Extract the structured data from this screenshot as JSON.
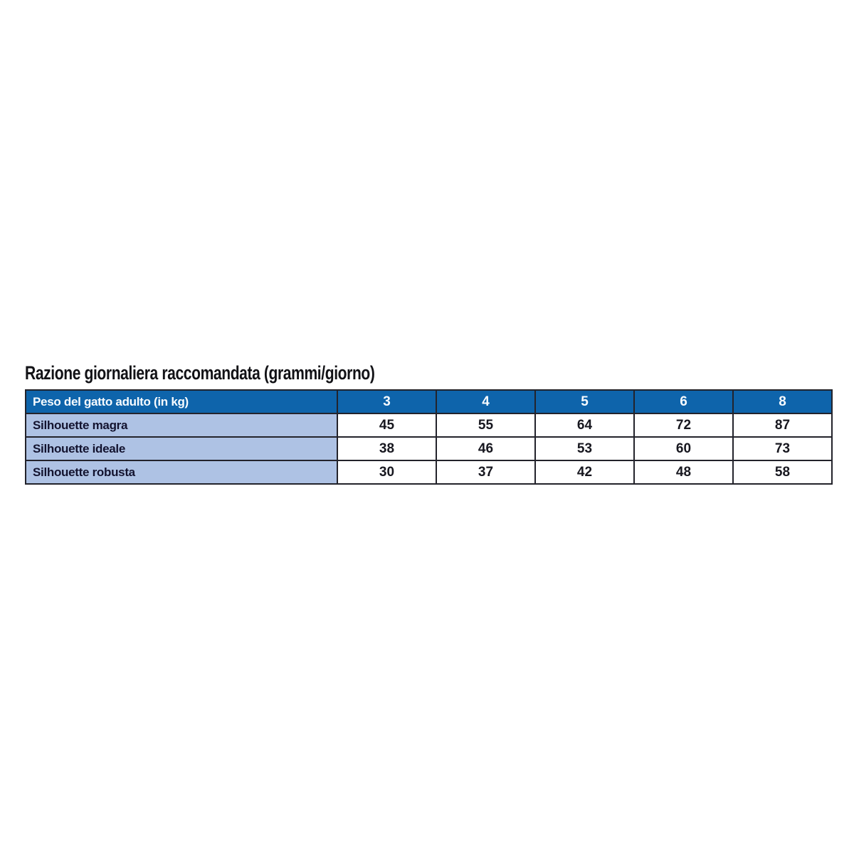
{
  "title": "Razione giornaliera raccomandata (grammi/giorno)",
  "colors": {
    "page_bg": "#ffffff",
    "title_text": "#121216",
    "header_bg": "#0e64ab",
    "header_text": "#f7fbff",
    "label_bg": "#aec2e4",
    "label_text": "#13132f",
    "value_text": "#17171f",
    "border": "#23232b"
  },
  "chart_data": {
    "type": "table",
    "title": "Razione giornaliera raccomandata (grammi/giorno)",
    "header": {
      "label": "Peso del gatto adulto (in kg)",
      "weights_kg": [
        "3",
        "4",
        "5",
        "6",
        "8"
      ]
    },
    "rows": [
      {
        "label": "Silhouette magra",
        "values": [
          "45",
          "55",
          "64",
          "72",
          "87"
        ]
      },
      {
        "label": "Silhouette ideale",
        "values": [
          "38",
          "46",
          "53",
          "60",
          "73"
        ]
      },
      {
        "label": "Silhouette robusta",
        "values": [
          "30",
          "37",
          "42",
          "48",
          "58"
        ]
      }
    ]
  }
}
